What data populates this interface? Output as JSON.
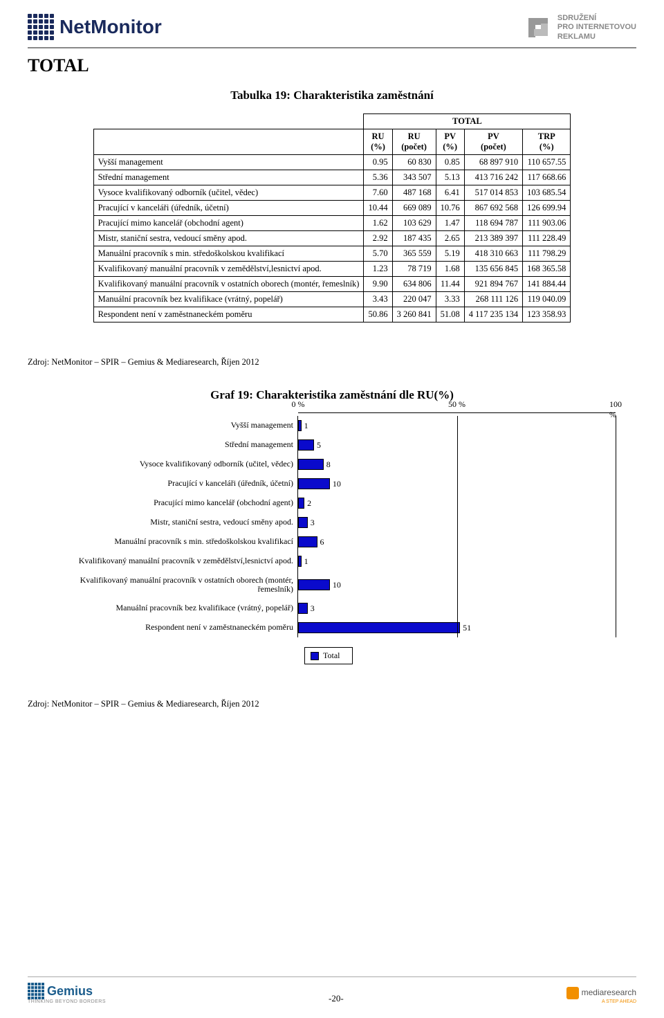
{
  "header": {
    "logo_left": "NetMonitor",
    "logo_right_line1": "SDRUŽENÍ",
    "logo_right_line2": "PRO INTERNETOVOU",
    "logo_right_line3": "REKLAMU"
  },
  "section_title": "TOTAL",
  "table": {
    "title": "Tabulka 19: Charakteristika zaměstnání",
    "super_header": "TOTAL",
    "columns": [
      "RU (%)",
      "RU (počet)",
      "PV (%)",
      "PV (počet)",
      "TRP (%)"
    ],
    "rows": [
      {
        "label": "Vyšší management",
        "v": [
          "0.95",
          "60 830",
          "0.85",
          "68 897 910",
          "110 657.55"
        ]
      },
      {
        "label": "Střední management",
        "v": [
          "5.36",
          "343 507",
          "5.13",
          "413 716 242",
          "117 668.66"
        ]
      },
      {
        "label": "Vysoce kvalifikovaný odborník (učitel, vědec)",
        "v": [
          "7.60",
          "487 168",
          "6.41",
          "517 014 853",
          "103 685.54"
        ]
      },
      {
        "label": "Pracující v kanceláři (úředník, účetní)",
        "v": [
          "10.44",
          "669 089",
          "10.76",
          "867 692 568",
          "126 699.94"
        ]
      },
      {
        "label": "Pracující mimo kancelář (obchodní agent)",
        "v": [
          "1.62",
          "103 629",
          "1.47",
          "118 694 787",
          "111 903.06"
        ]
      },
      {
        "label": "Mistr, staniční sestra, vedoucí směny apod.",
        "v": [
          "2.92",
          "187 435",
          "2.65",
          "213 389 397",
          "111 228.49"
        ]
      },
      {
        "label": "Manuální pracovník s min. středoškolskou kvalifikací",
        "v": [
          "5.70",
          "365 559",
          "5.19",
          "418 310 663",
          "111 798.29"
        ]
      },
      {
        "label": "Kvalifikovaný manuální pracovník v zemědělství,lesnictví apod.",
        "v": [
          "1.23",
          "78 719",
          "1.68",
          "135 656 845",
          "168 365.58"
        ]
      },
      {
        "label": "Kvalifikovaný manuální pracovník v ostatních oborech (montér, řemeslník)",
        "v": [
          "9.90",
          "634 806",
          "11.44",
          "921 894 767",
          "141 884.44"
        ]
      },
      {
        "label": "Manuální pracovník bez kvalifikace (vrátný, popelář)",
        "v": [
          "3.43",
          "220 047",
          "3.33",
          "268 111 126",
          "119 040.09"
        ]
      },
      {
        "label": "Respondent není v zaměstnaneckém poměru",
        "v": [
          "50.86",
          "3 260 841",
          "51.08",
          "4 117 235 134",
          "123 358.93"
        ]
      }
    ]
  },
  "source": "Zdroj: NetMonitor – SPIR – Gemius & Mediaresearch, Říjen 2012",
  "chart": {
    "title": "Graf 19: Charakteristika zaměstnání dle RU(%)",
    "axis_labels": [
      "0 %",
      "50 %",
      "100 %"
    ],
    "axis_positions": [
      0,
      50,
      100
    ],
    "xmax": 100,
    "bar_color": "#0a0acc",
    "categories": [
      {
        "label": "Vyšší management",
        "value": 1
      },
      {
        "label": "Střední management",
        "value": 5
      },
      {
        "label": "Vysoce kvalifikovaný odborník (učitel, vědec)",
        "value": 8
      },
      {
        "label": "Pracující v kanceláři (úředník, účetní)",
        "value": 10
      },
      {
        "label": "Pracující mimo kancelář (obchodní agent)",
        "value": 2
      },
      {
        "label": "Mistr, staniční sestra, vedoucí směny apod.",
        "value": 3
      },
      {
        "label": "Manuální pracovník s min. středoškolskou kvalifikací",
        "value": 6
      },
      {
        "label": "Kvalifikovaný manuální pracovník v zemědělství,lesnictví apod.",
        "value": 1
      },
      {
        "label": "Kvalifikovaný manuální pracovník v ostatních oborech (montér, řemeslník)",
        "value": 10,
        "tall": true
      },
      {
        "label": "Manuální pracovník bez kvalifikace (vrátný, popelář)",
        "value": 3
      },
      {
        "label": "Respondent není v zaměstnaneckém poměru",
        "value": 51
      }
    ],
    "legend": "Total"
  },
  "footer": {
    "left_logo": "Gemius",
    "left_sub": "THINKING BEYOND BORDERS",
    "page_num": "-20-",
    "right_logo": "mediaresearch",
    "right_sub": "A STEP AHEAD"
  }
}
